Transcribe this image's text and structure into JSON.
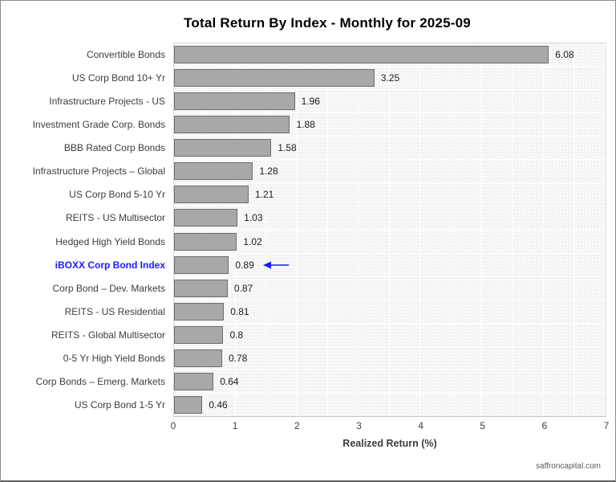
{
  "page": {
    "footer": "saffroncapital.com"
  },
  "chart_data": {
    "type": "bar",
    "orientation": "horizontal",
    "title": "Total Return By Index - Monthly for 2025-09",
    "xlabel": "Realized Return (%)",
    "xlim": [
      0,
      7
    ],
    "x_ticks": [
      "0",
      "1",
      "2",
      "3",
      "4",
      "5",
      "6",
      "7"
    ],
    "grid": true,
    "legend": "none",
    "categories": [
      "Convertible Bonds",
      "US Corp Bond 10+ Yr",
      "Infrastructure Projects - US",
      "Investment Grade Corp. Bonds",
      "BBB Rated Corp Bonds",
      "Infrastructure Projects – Global",
      "US Corp Bond 5-10 Yr",
      "REITS - US Multisector",
      "Hedged High Yield Bonds",
      "iBOXX Corp Bond Index",
      "Corp Bond – Dev. Markets",
      "REITS - US Residential",
      "REITS - Global Multisector",
      "0-5 Yr High Yield Bonds",
      "Corp Bonds – Emerg. Markets",
      "US Corp Bond 1-5 Yr"
    ],
    "values": [
      6.08,
      3.25,
      1.96,
      1.88,
      1.58,
      1.28,
      1.21,
      1.03,
      1.02,
      0.89,
      0.87,
      0.81,
      0.8,
      0.78,
      0.64,
      0.46
    ],
    "value_labels": [
      "6.08",
      "3.25",
      "1.96",
      "1.88",
      "1.58",
      "1.28",
      "1.21",
      "1.03",
      "1.02",
      "0.89",
      "0.87",
      "0.81",
      "0.8",
      "0.78",
      "0.64",
      "0.46"
    ],
    "bar_color": "#a8a8a8",
    "bar_border_color": "#6e6e6e",
    "highlight": {
      "index": 9,
      "category": "iBOXX Corp Bond Index",
      "color": "#1a1aff",
      "annotation": "left-arrow"
    }
  }
}
